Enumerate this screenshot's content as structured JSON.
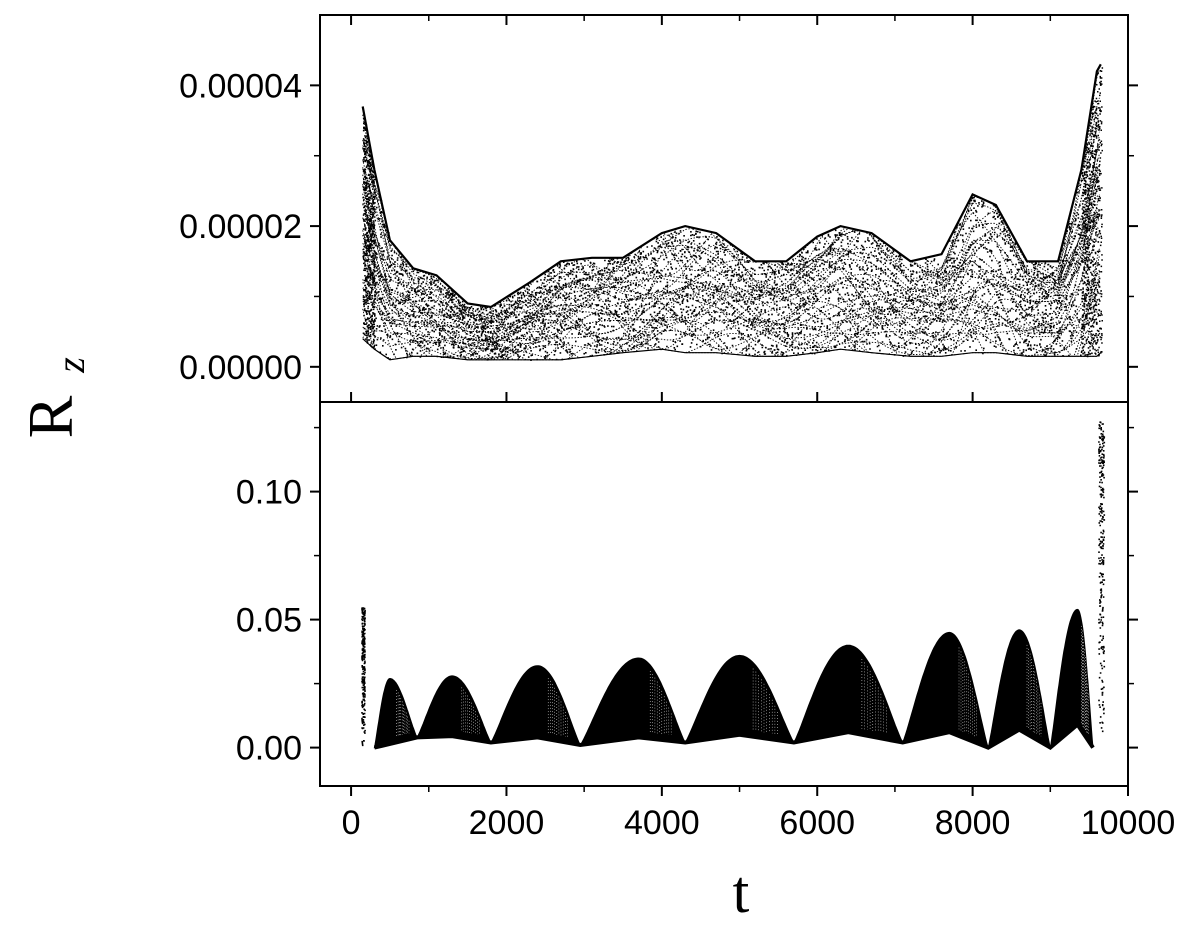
{
  "chart_data": [
    {
      "type": "scatter",
      "panel": "top",
      "x_range": [
        -400,
        10000
      ],
      "y_range": [
        -5e-06,
        5e-05
      ],
      "y_ticks": [
        0.0,
        2e-05,
        4e-05
      ],
      "y_tick_labels": [
        "0.00000",
        "0.00002",
        "0.00004"
      ],
      "x_ticks": [
        0,
        2000,
        4000,
        6000,
        8000,
        10000
      ],
      "series_envelope": {
        "x": [
          150,
          300,
          500,
          800,
          1100,
          1500,
          1800,
          2300,
          2700,
          3100,
          3500,
          4000,
          4300,
          4700,
          5200,
          5600,
          6000,
          6300,
          6700,
          7200,
          7600,
          8000,
          8300,
          8700,
          9100,
          9400,
          9600,
          9650
        ],
        "upper": [
          3.7e-05,
          2.8e-05,
          1.8e-05,
          1.4e-05,
          1.3e-05,
          9e-06,
          8.5e-06,
          1.2e-05,
          1.5e-05,
          1.55e-05,
          1.55e-05,
          1.9e-05,
          2e-05,
          1.9e-05,
          1.5e-05,
          1.5e-05,
          1.85e-05,
          2e-05,
          1.9e-05,
          1.5e-05,
          1.6e-05,
          2.45e-05,
          2.3e-05,
          1.5e-05,
          1.5e-05,
          2.8e-05,
          4.2e-05,
          4.3e-05
        ],
        "lower": [
          4e-06,
          2.5e-06,
          1e-06,
          1.5e-06,
          1.5e-06,
          1e-06,
          1e-06,
          1e-06,
          1e-06,
          1.5e-06,
          2e-06,
          2.5e-06,
          2e-06,
          2e-06,
          1.5e-06,
          1.5e-06,
          2e-06,
          2.5e-06,
          2e-06,
          1.5e-06,
          1.5e-06,
          2e-06,
          2e-06,
          1.5e-06,
          1.5e-06,
          1.5e-06,
          1.5e-06,
          2e-06
        ]
      }
    },
    {
      "type": "area",
      "panel": "bottom",
      "x_range": [
        -400,
        10000
      ],
      "y_range": [
        -0.015,
        0.135
      ],
      "y_ticks": [
        0.0,
        0.05,
        0.1
      ],
      "y_tick_labels": [
        "0.00",
        "0.05",
        "0.10"
      ],
      "x_ticks": [
        0,
        2000,
        4000,
        6000,
        8000,
        10000
      ],
      "x_tick_labels": [
        "0",
        "2000",
        "4000",
        "6000",
        "8000",
        "10000"
      ],
      "lobes": [
        {
          "start": 300,
          "peak": 500,
          "end": 850,
          "max": 0.027
        },
        {
          "start": 850,
          "peak": 1300,
          "end": 1800,
          "max": 0.028
        },
        {
          "start": 1800,
          "peak": 2400,
          "end": 2950,
          "max": 0.032
        },
        {
          "start": 2950,
          "peak": 3700,
          "end": 4300,
          "max": 0.035
        },
        {
          "start": 4300,
          "peak": 5000,
          "end": 5700,
          "max": 0.036
        },
        {
          "start": 5700,
          "peak": 6400,
          "end": 7100,
          "max": 0.04
        },
        {
          "start": 7100,
          "peak": 7700,
          "end": 8200,
          "max": 0.045
        },
        {
          "start": 8200,
          "peak": 8600,
          "end": 9000,
          "max": 0.046
        },
        {
          "start": 9000,
          "peak": 9350,
          "end": 9550,
          "max": 0.054
        }
      ],
      "baseline": {
        "x": [
          300,
          850,
          1300,
          1800,
          2400,
          2950,
          3700,
          4300,
          5000,
          5700,
          6400,
          7100,
          7700,
          8200,
          8600,
          9000,
          9350,
          9550
        ],
        "y": [
          0.0,
          0.004,
          0.0045,
          0.002,
          0.004,
          0.001,
          0.004,
          0.002,
          0.005,
          0.002,
          0.006,
          0.002,
          0.006,
          0.0,
          0.007,
          0.0,
          0.009,
          0.0
        ]
      },
      "edge_spikes": [
        {
          "x": 150,
          "y": 0.055
        },
        {
          "x": 9650,
          "y": 0.128
        }
      ]
    }
  ],
  "axes": {
    "xlabel": "t",
    "ylabel_main": "R",
    "ylabel_sub": "z"
  }
}
